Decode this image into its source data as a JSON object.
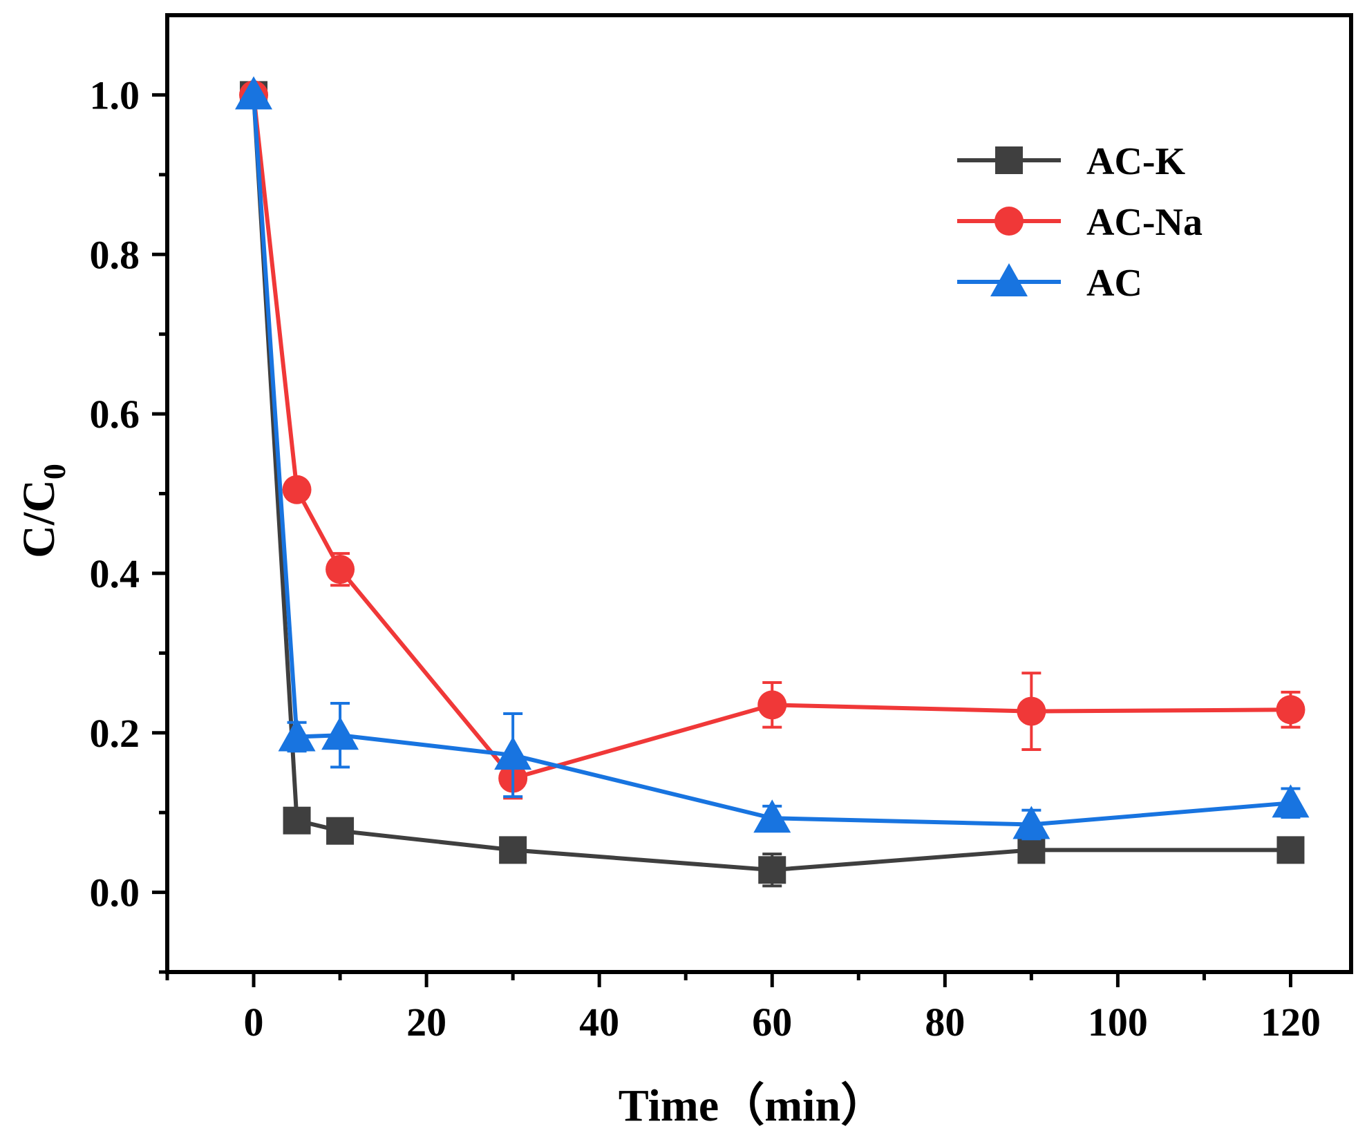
{
  "chart_data": {
    "type": "line",
    "title": "",
    "xlabel": "Time（min）",
    "ylabel_main": "C/C",
    "ylabel_sub": "0",
    "xlim": [
      -10,
      127
    ],
    "ylim": [
      -0.1,
      1.1
    ],
    "x_ticks": [
      0,
      20,
      40,
      60,
      80,
      100,
      120
    ],
    "x_tick_labels": [
      "0",
      "20",
      "40",
      "60",
      "80",
      "100",
      "120"
    ],
    "x_minor_ticks": [
      -10,
      10,
      30,
      50,
      70,
      90,
      110
    ],
    "y_ticks": [
      0.0,
      0.2,
      0.4,
      0.6,
      0.8,
      1.0
    ],
    "y_tick_labels": [
      "0.0",
      "0.2",
      "0.4",
      "0.6",
      "0.8",
      "1.0"
    ],
    "y_minor_ticks": [
      -0.1,
      0.1,
      0.3,
      0.5,
      0.7,
      0.9
    ],
    "grid": false,
    "legend_position": "top-right",
    "x": [
      0,
      5,
      10,
      30,
      60,
      90,
      120
    ],
    "series": [
      {
        "name": "AC-K",
        "color": "#3f3f3f",
        "marker": "square",
        "values": [
          1.0,
          0.09,
          0.077,
          0.053,
          0.028,
          0.053,
          0.053
        ],
        "errors": [
          0.0,
          0.008,
          0.008,
          0.008,
          0.02,
          0.008,
          0.008
        ]
      },
      {
        "name": "AC-Na",
        "color": "#f03838",
        "marker": "circle",
        "values": [
          1.0,
          0.505,
          0.405,
          0.143,
          0.235,
          0.227,
          0.229
        ],
        "errors": [
          0.0,
          0.008,
          0.02,
          0.025,
          0.028,
          0.048,
          0.022
        ]
      },
      {
        "name": "AC",
        "color": "#1874e0",
        "marker": "triangle",
        "values": [
          1.0,
          0.195,
          0.197,
          0.172,
          0.093,
          0.085,
          0.112
        ],
        "errors": [
          0.0,
          0.018,
          0.04,
          0.052,
          0.015,
          0.018,
          0.018
        ]
      }
    ]
  }
}
